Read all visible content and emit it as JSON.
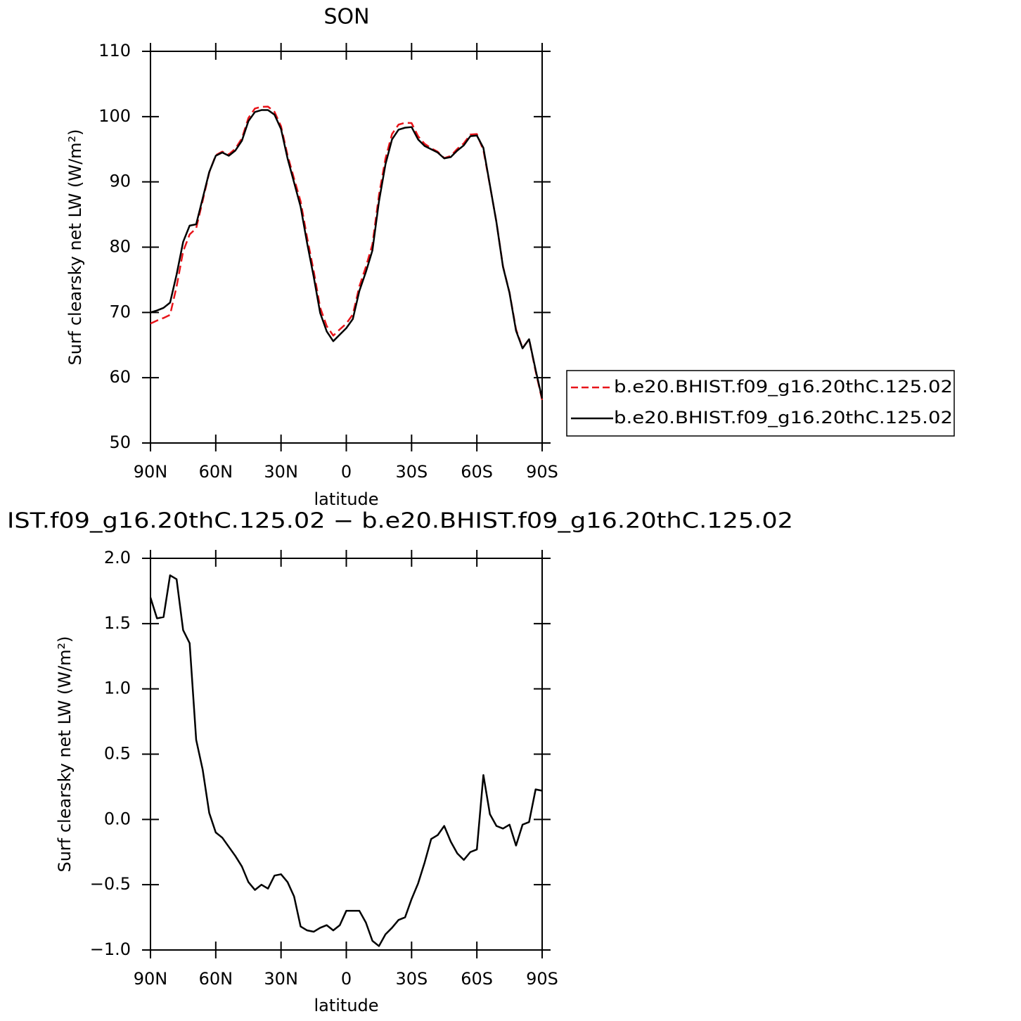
{
  "chart_data": [
    {
      "type": "line",
      "title": "SON",
      "xlabel": "latitude",
      "ylabel": "Surf clearsky net LW (W/m²)",
      "x": [
        90,
        87,
        84,
        81,
        78,
        75,
        72,
        69,
        66,
        63,
        60,
        57,
        54,
        51,
        48,
        45,
        42,
        39,
        36,
        33,
        30,
        27,
        24,
        21,
        18,
        15,
        12,
        9,
        6,
        3,
        0,
        -3,
        -6,
        -9,
        -12,
        -15,
        -18,
        -21,
        -24,
        -27,
        -30,
        -33,
        -36,
        -39,
        -42,
        -45,
        -48,
        -51,
        -54,
        -57,
        -60,
        -63,
        -66,
        -69,
        -72,
        -75,
        -78,
        -81,
        -84,
        -87,
        -90
      ],
      "series": [
        {
          "name": "b.e20.BHIST.f09_g16.20thC.125.02",
          "color": "#e8141a",
          "linestyle": "dashed",
          "values": [
            68.3,
            68.76,
            69.15,
            69.63,
            73.96,
            79.35,
            81.95,
            82.89,
            87.12,
            91.45,
            94.1,
            94.64,
            94.21,
            95.08,
            96.66,
            99.78,
            101.24,
            101.5,
            101.53,
            100.73,
            98.52,
            94.08,
            90.49,
            87.02,
            81.45,
            76.36,
            70.73,
            67.91,
            66.45,
            67.41,
            68.3,
            69.7,
            74.0,
            76.99,
            80.43,
            87.97,
            93.58,
            97.33,
            98.77,
            99.05,
            99.01,
            96.99,
            95.83,
            95.15,
            94.62,
            93.65,
            93.97,
            95.06,
            95.91,
            97.25,
            97.33,
            94.86,
            89.46,
            83.85,
            77.07,
            73.04,
            67.4,
            64.54,
            65.92,
            60.97,
            56.58
          ]
        },
        {
          "name": "b.e20.BHIST.f09_g16.20thC.125.02",
          "color": "#000000",
          "linestyle": "solid",
          "values": [
            70.0,
            70.3,
            70.7,
            71.5,
            75.8,
            80.8,
            83.3,
            83.5,
            87.5,
            91.5,
            94.0,
            94.5,
            94.0,
            94.8,
            96.3,
            99.3,
            100.7,
            101.0,
            101.0,
            100.3,
            98.1,
            93.6,
            89.9,
            86.2,
            80.6,
            75.5,
            69.9,
            67.1,
            65.6,
            66.6,
            67.6,
            69.0,
            73.3,
            76.2,
            79.5,
            87.0,
            92.7,
            96.5,
            98.0,
            98.3,
            98.4,
            96.5,
            95.5,
            95.0,
            94.5,
            93.6,
            93.8,
            94.8,
            95.6,
            97.0,
            97.1,
            95.2,
            89.5,
            83.8,
            77.0,
            73.0,
            67.2,
            64.5,
            65.9,
            61.2,
            56.8
          ]
        }
      ],
      "xlim": [
        90,
        -90
      ],
      "xticks": [
        {
          "value": 90,
          "label": "90N"
        },
        {
          "value": 60,
          "label": "60N"
        },
        {
          "value": 30,
          "label": "30N"
        },
        0,
        {
          "value": -30,
          "label": "30S"
        },
        {
          "value": -60,
          "label": "60S"
        },
        {
          "value": -90,
          "label": "90S"
        }
      ],
      "ylim": [
        50,
        110
      ],
      "yticks": [
        50,
        60,
        70,
        80,
        90,
        100,
        110
      ],
      "legend": "right"
    },
    {
      "type": "line",
      "title": "IST.f09_g16.20thC.125.02 − b.e20.BHIST.f09_g16.20thC.125.02",
      "xlabel": "latitude",
      "ylabel": "Surf clearsky net LW (W/m²)",
      "x": [
        90,
        87,
        84,
        81,
        78,
        75,
        72,
        69,
        66,
        63,
        60,
        57,
        54,
        51,
        48,
        45,
        42,
        39,
        36,
        33,
        30,
        27,
        24,
        21,
        18,
        15,
        12,
        9,
        6,
        3,
        0,
        -3,
        -6,
        -9,
        -12,
        -15,
        -18,
        -21,
        -24,
        -27,
        -30,
        -33,
        -36,
        -39,
        -42,
        -45,
        -48,
        -51,
        -54,
        -57,
        -60,
        -63,
        -66,
        -69,
        -72,
        -75,
        -78,
        -81,
        -84,
        -87,
        -90
      ],
      "color": "#000000",
      "values": [
        1.7,
        1.54,
        1.55,
        1.87,
        1.84,
        1.45,
        1.35,
        0.61,
        0.38,
        0.05,
        -0.1,
        -0.14,
        -0.21,
        -0.28,
        -0.36,
        -0.48,
        -0.54,
        -0.5,
        -0.53,
        -0.43,
        -0.42,
        -0.48,
        -0.59,
        -0.82,
        -0.85,
        -0.86,
        -0.83,
        -0.81,
        -0.85,
        -0.81,
        -0.7,
        -0.7,
        -0.7,
        -0.79,
        -0.93,
        -0.97,
        -0.88,
        -0.83,
        -0.77,
        -0.75,
        -0.61,
        -0.49,
        -0.33,
        -0.15,
        -0.12,
        -0.05,
        -0.17,
        -0.26,
        -0.31,
        -0.25,
        -0.23,
        0.34,
        0.04,
        -0.05,
        -0.07,
        -0.04,
        -0.2,
        -0.04,
        -0.02,
        0.23,
        0.22
      ],
      "xlim": [
        90,
        -90
      ],
      "xticks": [
        {
          "value": 90,
          "label": "90N"
        },
        {
          "value": 60,
          "label": "60N"
        },
        {
          "value": 30,
          "label": "30N"
        },
        0,
        {
          "value": -30,
          "label": "30S"
        },
        {
          "value": -60,
          "label": "60S"
        },
        {
          "value": -90,
          "label": "90S"
        }
      ],
      "ylim": [
        -1,
        2
      ],
      "yticks": [
        {
          "value": -1,
          "label": "−1.0"
        },
        {
          "value": -0.5,
          "label": "−0.5"
        },
        {
          "value": 0,
          "label": "0.0"
        },
        {
          "value": 0.5,
          "label": "0.5"
        },
        {
          "value": 1,
          "label": "1.0"
        },
        {
          "value": 1.5,
          "label": "1.5"
        },
        {
          "value": 2,
          "label": "2.0"
        }
      ]
    }
  ]
}
